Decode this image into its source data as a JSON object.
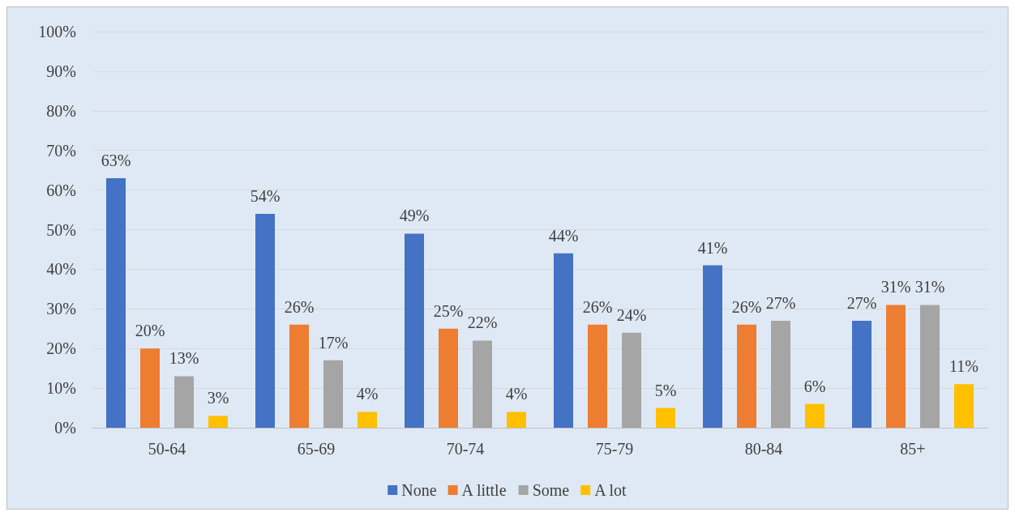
{
  "chart_data": {
    "type": "bar",
    "categories": [
      "50-64",
      "65-69",
      "70-74",
      "75-79",
      "80-84",
      "85+"
    ],
    "series": [
      {
        "name": "None",
        "color": "#4472c4",
        "values": [
          63,
          54,
          49,
          44,
          41,
          27
        ],
        "value_labels": [
          "63%",
          "54%",
          "49%",
          "44%",
          "41%",
          "27%"
        ]
      },
      {
        "name": "A little",
        "color": "#ed7d31",
        "values": [
          20,
          26,
          25,
          26,
          26,
          31
        ],
        "value_labels": [
          "20%",
          "26%",
          "25%",
          "26%",
          "26%",
          "31%"
        ]
      },
      {
        "name": "Some",
        "color": "#a5a5a5",
        "values": [
          13,
          17,
          22,
          24,
          27,
          31
        ],
        "value_labels": [
          "13%",
          "17%",
          "22%",
          "24%",
          "27%",
          "31%"
        ]
      },
      {
        "name": "A lot",
        "color": "#ffc000",
        "values": [
          3,
          4,
          4,
          5,
          6,
          11
        ],
        "value_labels": [
          "3%",
          "4%",
          "4%",
          "5%",
          "6%",
          "11%"
        ]
      }
    ],
    "ylim": [
      0,
      100
    ],
    "yticks": [
      {
        "value": 0,
        "label": "0%"
      },
      {
        "value": 10,
        "label": "10%"
      },
      {
        "value": 20,
        "label": "20%"
      },
      {
        "value": 30,
        "label": "30%"
      },
      {
        "value": 40,
        "label": "40%"
      },
      {
        "value": 50,
        "label": "50%"
      },
      {
        "value": 60,
        "label": "60%"
      },
      {
        "value": 70,
        "label": "70%"
      },
      {
        "value": 80,
        "label": "80%"
      },
      {
        "value": 90,
        "label": "90%"
      },
      {
        "value": 100,
        "label": "100%"
      }
    ],
    "grid": "y",
    "legend": "bottom"
  }
}
